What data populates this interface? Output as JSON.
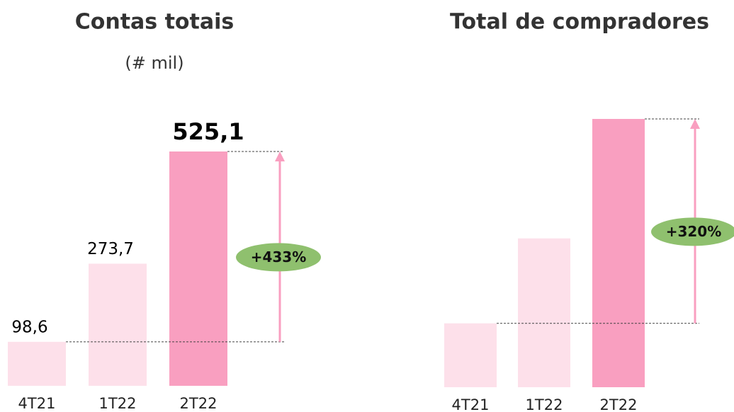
{
  "chart_data": [
    {
      "type": "bar",
      "title": "Contas totais",
      "subtitle": "(# mil)",
      "categories": [
        "4T21",
        "1T22",
        "2T22"
      ],
      "values": [
        98.6,
        273.7,
        525.1
      ],
      "value_labels": [
        "98,6",
        "273,7",
        "525,1"
      ],
      "colors": [
        "#fde0ea",
        "#fde0ea",
        "#f99fc0"
      ],
      "annotation": "+433%",
      "annotation_color": "#8fc06e"
    },
    {
      "type": "bar",
      "title": "Total de compradores",
      "categories": [
        "4T21",
        "1T22",
        "2T22"
      ],
      "values": [
        100,
        233,
        420
      ],
      "colors": [
        "#fde0ea",
        "#fde0ea",
        "#f99fc0"
      ],
      "annotation": "+320%",
      "annotation_color": "#8fc06e"
    }
  ]
}
